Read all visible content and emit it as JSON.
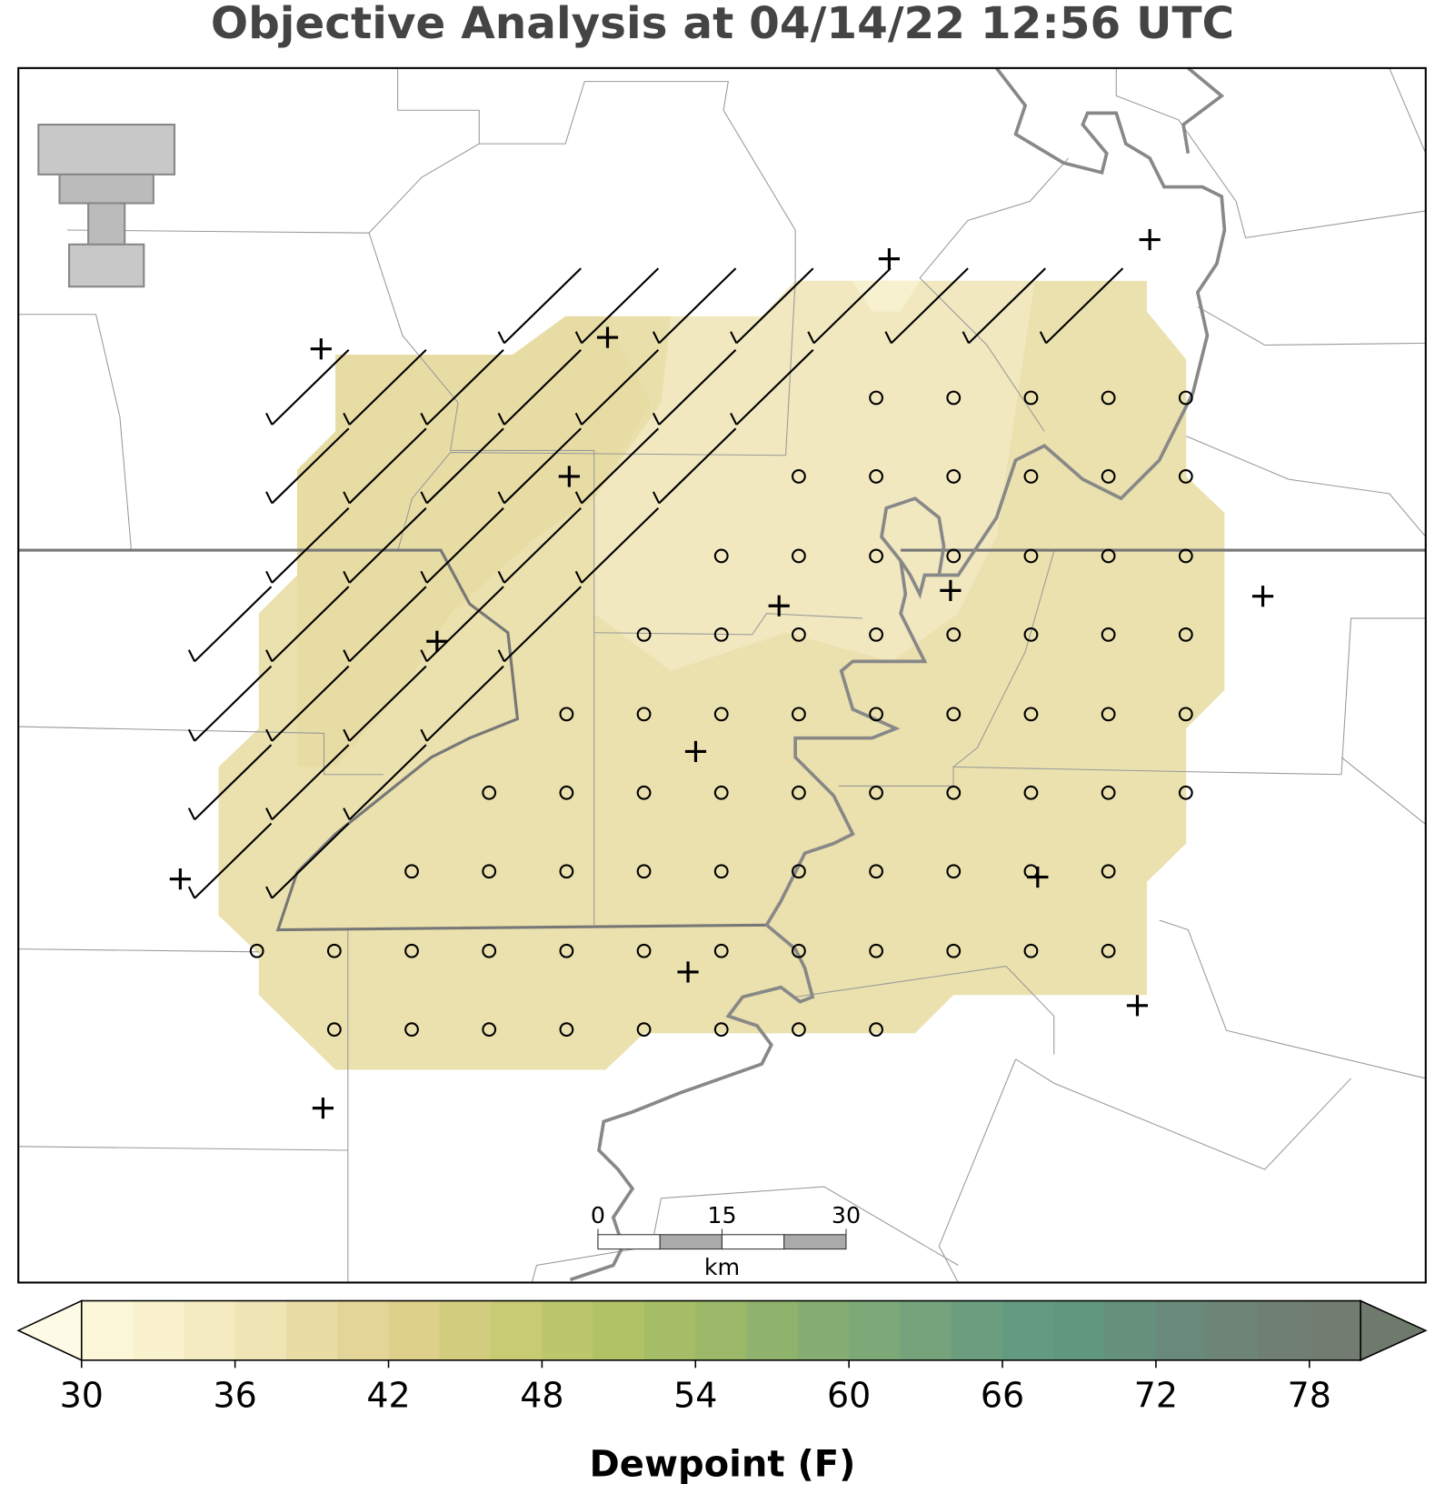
{
  "title": "Objective Analysis at 04/14/22 12:56 UTC",
  "colorbar": {
    "label": "Dewpoint (F)",
    "lim": [
      30,
      80
    ],
    "ticks": [
      30,
      36,
      42,
      48,
      54,
      60,
      66,
      72,
      78
    ],
    "bounds": [
      30,
      32,
      34,
      36,
      38,
      40,
      42,
      44,
      46,
      48,
      50,
      52,
      54,
      56,
      58,
      60,
      62,
      64,
      66,
      68,
      70,
      72,
      74,
      76,
      78,
      80
    ],
    "colors": [
      "#fcf7d9",
      "#f9f2cd",
      "#f4ecc0",
      "#efe4b3",
      "#e9dca5",
      "#e3d598",
      "#ddd08b",
      "#d2cc7e",
      "#c8ca74",
      "#bcc66c",
      "#b0c266",
      "#a5bd66",
      "#9ab868",
      "#8fb26c",
      "#85ad72",
      "#7da878",
      "#74a37c",
      "#6b9e7f",
      "#639a81",
      "#62977f",
      "#65907c",
      "#69897a",
      "#6d8477",
      "#707f73",
      "#727c70"
    ],
    "under_color": "#fdfbe6",
    "over_color": "#6e7a6b"
  },
  "scale_bar": {
    "lim": [
      0,
      30
    ],
    "ticks": [
      0,
      15,
      30
    ],
    "unit": "km"
  }
}
